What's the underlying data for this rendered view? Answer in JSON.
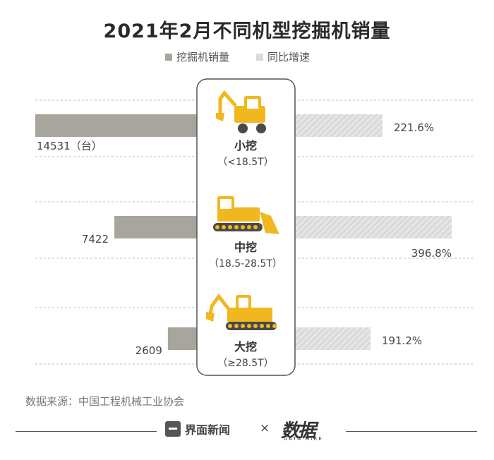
{
  "title": "2021年2月不同机型挖掘机销量",
  "legend": {
    "sales_label": "挖掘机销量",
    "growth_label": "同比增速"
  },
  "colors": {
    "sales_bar": "#a8a59c",
    "growth_bar": "#dadada",
    "panel_border": "#555555",
    "excavator_yellow": "#f0b81e"
  },
  "chart_data": {
    "type": "bar",
    "layout": "butterfly",
    "title": "2021年2月不同机型挖掘机销量",
    "categories": [
      {
        "name": "小挖",
        "range": "（<18.5T）",
        "icon": "mini-excavator-icon"
      },
      {
        "name": "中挖",
        "range": "（18.5-28.5T）",
        "icon": "bulldozer-icon"
      },
      {
        "name": "大挖",
        "range": "（≥28.5T）",
        "icon": "excavator-bulldozer-icon"
      }
    ],
    "series": [
      {
        "name": "挖掘机销量",
        "values": [
          14531,
          7422,
          2609
        ],
        "labels": [
          "14531（台）",
          "7422",
          "2609"
        ]
      },
      {
        "name": "同比增速",
        "values": [
          221.6,
          396.8,
          191.2
        ],
        "labels": [
          "221.6%",
          "396.8%",
          "191.2%"
        ]
      }
    ]
  },
  "source": "数据来源：中国工程机械工业协会",
  "footer": {
    "brand_left": "界面新闻",
    "separator": "×",
    "brand_right": "数据",
    "brand_right_sub": "DATA MIRE"
  }
}
